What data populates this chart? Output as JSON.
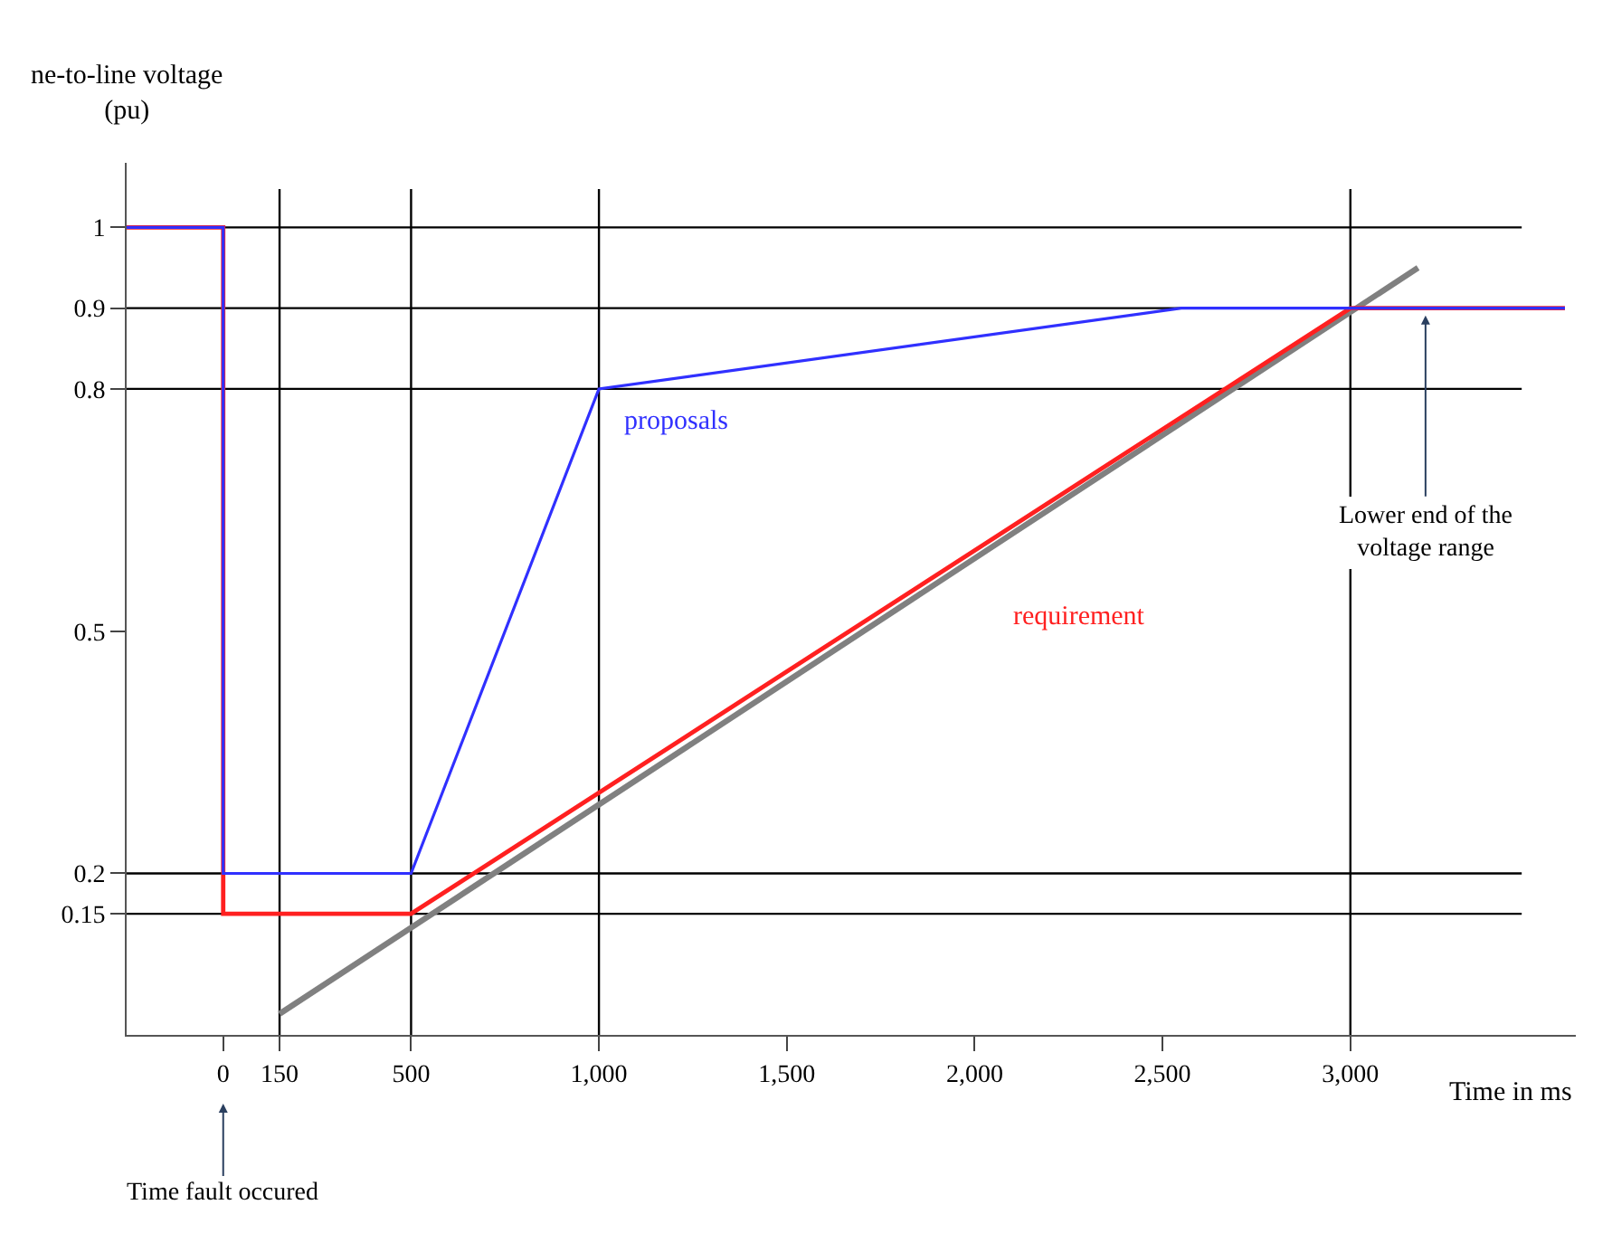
{
  "chart_data": {
    "type": "line",
    "xlabel": "Time in ms",
    "ylabel": "ne-to-line voltage\n(pu)",
    "xlim": [
      -257,
      3600
    ],
    "ylim": [
      0,
      1.08
    ],
    "xticks": [
      0,
      150,
      500,
      {
        "value": 1000,
        "label": "1,000"
      },
      {
        "value": 1500,
        "label": "1,500"
      },
      {
        "value": 2000,
        "label": "2,000"
      },
      {
        "value": 2500,
        "label": "2,500"
      },
      {
        "value": 3000,
        "label": "3,000"
      }
    ],
    "yticks": [
      0.15,
      0.2,
      0.5,
      0.8,
      0.9,
      1
    ],
    "series": [
      {
        "color": "#808080",
        "x": [
          150,
          3180
        ],
        "values": [
          0.026,
          0.95
        ]
      },
      {
        "name": "requirement",
        "color": "#ff2020",
        "x": [
          -257,
          0,
          0,
          500,
          3000,
          3571
        ],
        "values": [
          1,
          1,
          0.15,
          0.15,
          0.9,
          0.9
        ]
      },
      {
        "name": "proposals",
        "color": "#3030ff",
        "x": [
          -257,
          0,
          0,
          500,
          1000,
          2550,
          3571
        ],
        "values": [
          1,
          1,
          0.2,
          0.2,
          0.8,
          0.9,
          0.9
        ]
      }
    ],
    "ref_lines": [
      {
        "axis": "y",
        "value": 1,
        "color": "#000000"
      },
      {
        "axis": "y",
        "value": 0.9,
        "color": "#000000"
      },
      {
        "axis": "y",
        "value": 0.8,
        "color": "#000000"
      },
      {
        "axis": "y",
        "value": 0.2,
        "color": "#000000"
      },
      {
        "axis": "y",
        "value": 0.15,
        "color": "#000000"
      },
      {
        "axis": "x",
        "value": 150,
        "color": "#000000"
      },
      {
        "axis": "x",
        "value": 500,
        "color": "#000000"
      },
      {
        "axis": "x",
        "value": 1000,
        "color": "#000000"
      },
      {
        "axis": "x",
        "value": 3000,
        "color": "#000000"
      }
    ],
    "annotations": [
      "Time fault occured",
      {
        "text": "Lower end of the\nvoltage range",
        "x": 3200,
        "y": 0.9
      }
    ],
    "marker": "none",
    "line_style": "solid",
    "grid": false,
    "legend": false
  }
}
